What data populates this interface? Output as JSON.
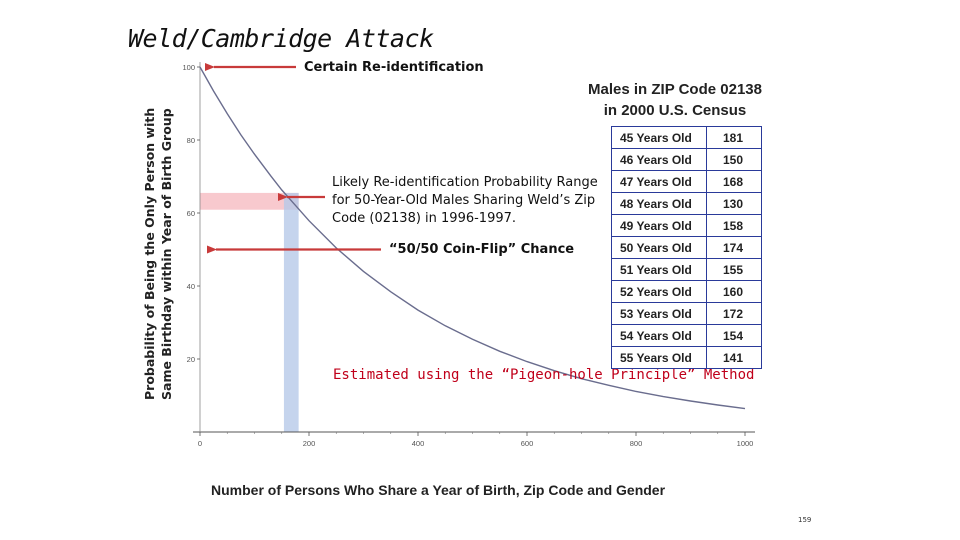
{
  "slide_title": "Weld/Cambridge Attack",
  "page_number": "159",
  "chart_data": {
    "type": "line",
    "xlabel": "Number of Persons Who Share a Year of Birth, Zip Code and Gender",
    "ylabel_lines": [
      "Probability  of Being the Only Person with",
      "Same Birthday  within Year of Birth Group"
    ],
    "xlim": [
      0,
      1000
    ],
    "ylim": [
      0,
      100
    ],
    "x_ticks": [
      0,
      200,
      400,
      600,
      800,
      1000
    ],
    "y_ticks": [
      20,
      40,
      60,
      80,
      100
    ],
    "series": [
      {
        "x": [
          0,
          25,
          50,
          75,
          100,
          130,
          150,
          175,
          200,
          250,
          300,
          350,
          400,
          450,
          500,
          550,
          600,
          650,
          700,
          750,
          800,
          850,
          900,
          950,
          1000
        ],
        "y": [
          100,
          93.4,
          87.2,
          81.4,
          76.1,
          70.1,
          66.3,
          62.1,
          57.9,
          50.4,
          44.0,
          38.4,
          33.4,
          29.1,
          25.4,
          22.1,
          19.3,
          16.8,
          14.6,
          12.8,
          11.1,
          9.7,
          8.5,
          7.4,
          6.4
        ]
      }
    ],
    "highlight_x_range": [
      154,
      181
    ],
    "highlight_y_range": [
      60.9,
      65.5
    ],
    "annotations": {
      "certain": {
        "text": "Certain Re-identification",
        "y": 100
      },
      "likely": {
        "text": "Likely Re-identification Probability Range for 50-Year-Old  Males Sharing Weld’s Zip Code (02138) in 1996-1997."
      },
      "coin": {
        "text": "“50/50 Coin-Flip” Chance",
        "y": 50
      },
      "estimated": {
        "text": "Estimated using the “Pigeon-hole Principle” Method"
      }
    },
    "census_table": {
      "title_lines": [
        "Males in ZIP Code 02138",
        "in 2000 U.S. Census"
      ],
      "rows": [
        {
          "age": "45 Years Old",
          "count": "181"
        },
        {
          "age": "46 Years Old",
          "count": "150"
        },
        {
          "age": "47 Years Old",
          "count": "168"
        },
        {
          "age": "48 Years Old",
          "count": "130"
        },
        {
          "age": "49 Years Old",
          "count": "158"
        },
        {
          "age": "50 Years Old",
          "count": "174"
        },
        {
          "age": "51 Years Old",
          "count": "155"
        },
        {
          "age": "52 Years Old",
          "count": "160"
        },
        {
          "age": "53 Years Old",
          "count": "172"
        },
        {
          "age": "54 Years Old",
          "count": "154"
        },
        {
          "age": "55 Years Old",
          "count": "141"
        }
      ]
    },
    "colors": {
      "curve": "#6a6d8e",
      "arrow": "#c83a3a",
      "band_red": "#f6b7bd",
      "band_blue": "#b7c9e8",
      "table_border": "#2a3a9a"
    }
  }
}
